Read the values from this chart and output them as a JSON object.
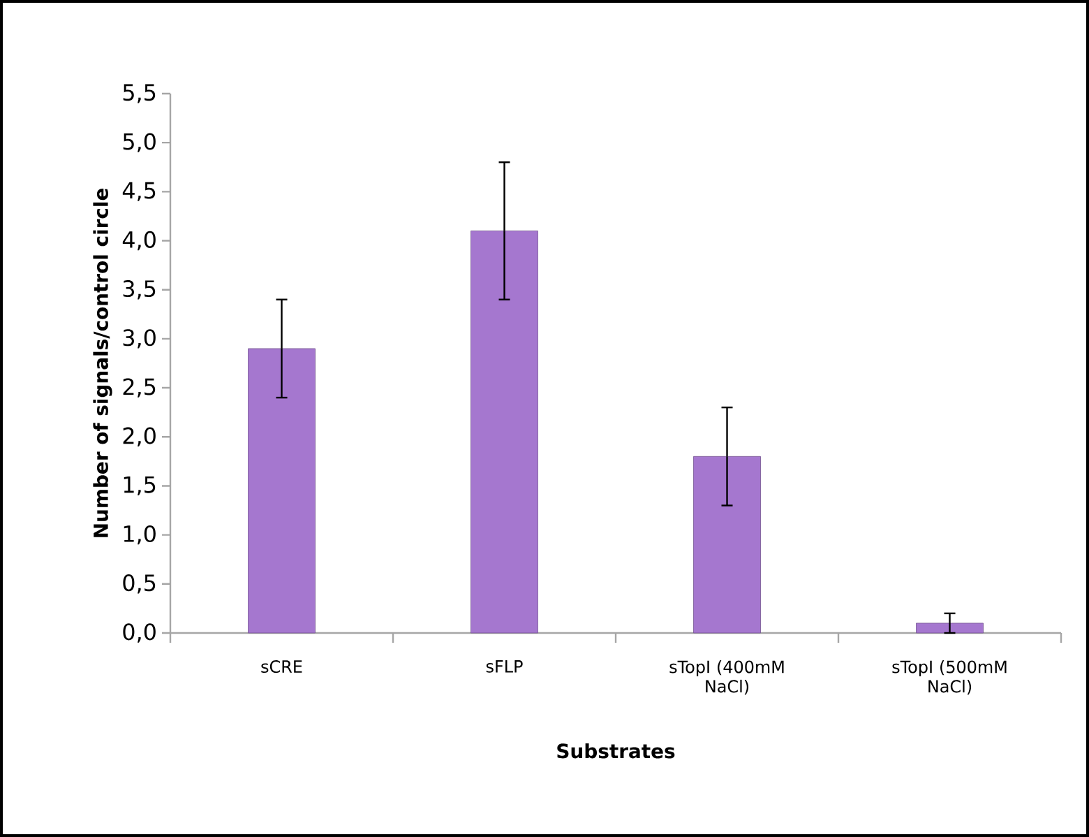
{
  "chart_data": {
    "type": "bar",
    "xlabel": "Substrates",
    "ylabel": "Number of signals/control circle",
    "categories": [
      "sCRE",
      "sFLP",
      "sTopI (400mM NaCl)",
      "sTopI (500mM NaCl)"
    ],
    "values": [
      2.9,
      4.1,
      1.8,
      0.1
    ],
    "errors": [
      0.5,
      0.7,
      0.5,
      0.1
    ],
    "color": "#a577cf",
    "ylim": [
      0,
      5.5
    ],
    "yticks": [
      {
        "value": 0,
        "label": "0,0"
      },
      {
        "value": 0.5,
        "label": "0,5"
      },
      {
        "value": 1,
        "label": "1,0"
      },
      {
        "value": 1.5,
        "label": "1,5"
      },
      {
        "value": 2,
        "label": "2,0"
      },
      {
        "value": 2.5,
        "label": "2,5"
      },
      {
        "value": 3,
        "label": "3,0"
      },
      {
        "value": 3.5,
        "label": "3,5"
      },
      {
        "value": 4,
        "label": "4,0"
      },
      {
        "value": 4.5,
        "label": "4,5"
      },
      {
        "value": 5,
        "label": "5,0"
      },
      {
        "value": 5.5,
        "label": "5,5"
      }
    ]
  }
}
